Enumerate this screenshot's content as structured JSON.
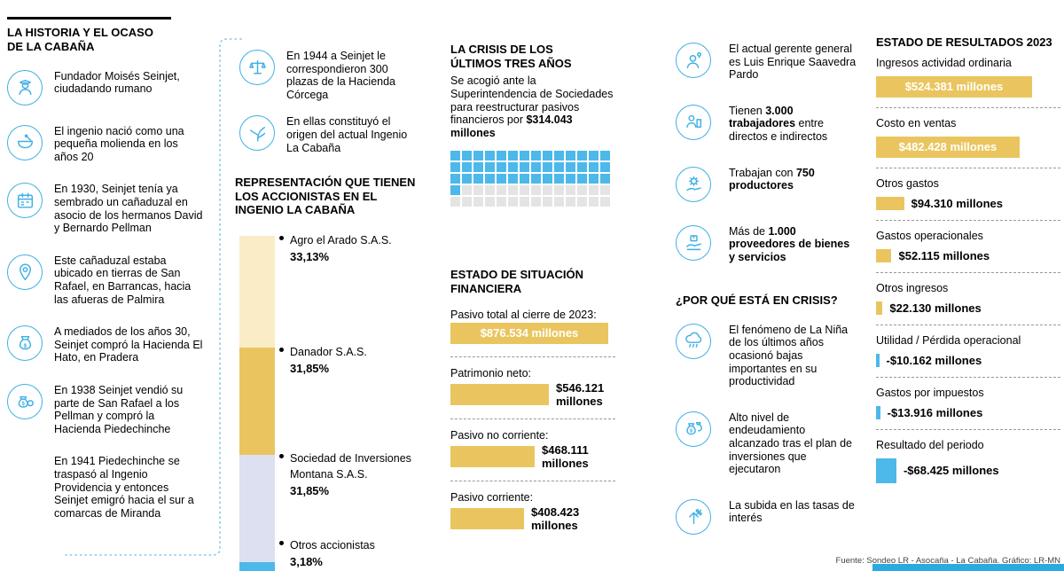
{
  "title": "LA HISTORIA Y EL OCASO DE LA CABAÑA",
  "timeline": {
    "items": [
      {
        "icon": "founder-icon",
        "text": "Fundador Moisés Seinjet, ciudadando rumano"
      },
      {
        "icon": "mortar-icon",
        "text": "El ingenio nació como una pequeña molienda en los años 20"
      },
      {
        "icon": "calendar-icon",
        "text": "En 1930, Seinjet tenía ya sembrado un cañaduzal en asocio de los hermanos David y Bernardo Pellman"
      },
      {
        "icon": "location-pin-icon",
        "text": "Este cañaduzal estaba ubicado en tierras de San Rafael, en Barrancas, hacia las afueras de Palmira"
      },
      {
        "icon": "money-bag-icon",
        "text": "A mediados de los años 30, Seinjet compró la Hacienda El Hato, en Pradera"
      },
      {
        "icon": "coins-icon",
        "text": "En 1938 Seinjet vendió su parte de San Rafael a los Pellman y compró la Hacienda Piedechinche"
      },
      {
        "icon": "",
        "text": "En 1941 Piedechinche se traspasó al Ingenio Providencia y entonces Seinjet emigró hacia el sur a comarcas de Miranda"
      }
    ]
  },
  "origin": {
    "items": [
      {
        "icon": "scales-icon",
        "text": "En 1944 a Seinjet le correspondieron 300 plazas de la Hacienda Córcega"
      },
      {
        "icon": "sugarcane-icon",
        "text": "En ellas constituyó el origen del actual Ingenio La Cabaña"
      }
    ]
  },
  "crisis": {
    "title": "LA CRISIS DE LOS ÚLTIMOS TRES AÑOS",
    "text_pre": "Se acogió ante la Superintendencia de Sociedades para reestructurar pasivos financieros por ",
    "text_bold": "$314.043 millones"
  },
  "management": {
    "items": [
      {
        "icon": "manager-icon",
        "pre": "El actual gerente general es Luis Enrique Saavedra Pardo",
        "bold": "",
        "post": ""
      },
      {
        "icon": "workers-icon",
        "pre": "Tienen ",
        "bold": "3.000 trabajadores",
        "post": " entre directos e indirectos"
      },
      {
        "icon": "producers-icon",
        "pre": "Trabajan con ",
        "bold": "750 productores",
        "post": ""
      },
      {
        "icon": "suppliers-icon",
        "pre": "Más de ",
        "bold": "1.000 proveedores de bienes y servicios",
        "post": ""
      }
    ]
  },
  "why_crisis": {
    "title": "¿POR QUÉ ESTÁ EN CRISIS?",
    "items": [
      {
        "icon": "la-nina-icon",
        "text": "El fenómeno de La Niña de los últimos años ocasionó bajas importantes en su productividad"
      },
      {
        "icon": "debt-icon",
        "text": "Alto nivel de endeudamiento alcanzado tras el plan de inversiones que ejecutaron"
      },
      {
        "icon": "interest-rate-icon",
        "text": "La subida en las tasas de interés"
      }
    ]
  },
  "footer": {
    "source": "Fuente: Sondeo LR - Asocaña - La Cabaña. Gráfico: LR-MN"
  },
  "colors": {
    "accent_blue": "#3FB0E5",
    "bar_gold": "#EAC55F",
    "bar_blue": "#4DB8EA",
    "cream": "#FAECC6",
    "lavender": "#DDE0F0",
    "waffle_empty": "#E4E4E4",
    "brand_strip": "#29ABE2"
  },
  "chart_data": [
    {
      "id": "shareholders",
      "type": "bar",
      "subtype": "stacked-vertical",
      "title": "REPRESENTACIÓN QUE TIENEN LOS ACCIONISTAS EN EL INGENIO LA CABAÑA",
      "categories": [
        "Agro el Arado S.A.S.",
        "Danador S.A.S.",
        "Sociedad de Inversiones Montana S.A.S.",
        "Otros accionistas"
      ],
      "values": [
        33.13,
        31.85,
        31.85,
        3.18
      ],
      "labels": [
        "33,13%",
        "31,85%",
        "31,85%",
        "3,18%"
      ],
      "colors": [
        "#FAECC6",
        "#EAC55F",
        "#DDE0F0",
        "#4DB8EA"
      ],
      "unit": "%"
    },
    {
      "id": "restructured-debt-waffle",
      "type": "heatmap",
      "subtype": "waffle",
      "label": "$314.043 millones",
      "rows": 5,
      "cols": 14,
      "filled": 43,
      "total": 70,
      "filled_color": "#4DB8EA",
      "empty_color": "#E4E4E4"
    },
    {
      "id": "financial-position",
      "type": "bar",
      "subtype": "horizontal",
      "title": "ESTADO DE SITUACIÓN FINANCIERA",
      "categories": [
        "Pasivo total al cierre de 2023:",
        "Patrimonio neto:",
        "Pasivo no corriente:",
        "Pasivo corriente:"
      ],
      "values": [
        876534,
        546121,
        468111,
        408423
      ],
      "value_labels": [
        "$876.534 millones",
        "$546.121 millones",
        "$468.111 millones",
        "$408.423 millones"
      ],
      "bar_color": "#EAC55F",
      "unit": "COP millones"
    },
    {
      "id": "income-statement",
      "type": "bar",
      "subtype": "horizontal",
      "title": "ESTADO DE RESULTADOS 2023",
      "categories": [
        "Ingresos actividad ordinaria",
        "Costo en ventas",
        "Otros gastos",
        "Gastos operacionales",
        "Otros ingresos",
        "Utilidad / Pérdida operacional",
        "Gastos por impuestos",
        "Resultado del periodo"
      ],
      "values": [
        524381,
        482428,
        94310,
        52115,
        22130,
        -10162,
        -13916,
        -68425
      ],
      "value_labels": [
        "$524.381 millones",
        "$482.428 millones",
        "$94.310 millones",
        "$52.115 millones",
        "$22.130 millones",
        "-$10.162 millones",
        "-$13.916 millones",
        "-$68.425 millones"
      ],
      "positive_color": "#EAC55F",
      "negative_color": "#4DB8EA",
      "unit": "COP millones"
    }
  ]
}
